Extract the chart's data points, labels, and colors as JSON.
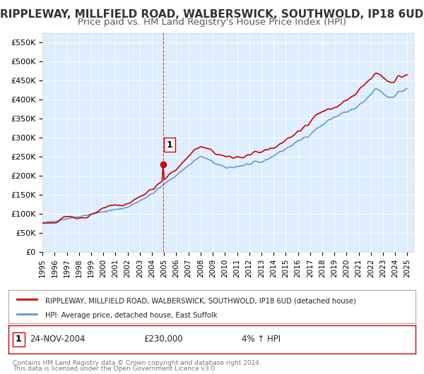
{
  "title": "RIPPLEWAY, MILLFIELD ROAD, WALBERSWICK, SOUTHWOLD, IP18 6UD",
  "subtitle": "Price paid vs. HM Land Registry's House Price Index (HPI)",
  "xlabel": "",
  "ylabel": "",
  "ylim": [
    0,
    575000
  ],
  "yticks": [
    0,
    50000,
    100000,
    150000,
    200000,
    250000,
    300000,
    350000,
    400000,
    450000,
    500000,
    550000
  ],
  "ytick_labels": [
    "£0",
    "£50K",
    "£100K",
    "£150K",
    "£200K",
    "£250K",
    "£300K",
    "£350K",
    "£400K",
    "£450K",
    "£500K",
    "£550K"
  ],
  "xtick_years": [
    1995,
    1996,
    1997,
    1998,
    1999,
    2000,
    2001,
    2002,
    2003,
    2004,
    2005,
    2006,
    2007,
    2008,
    2009,
    2010,
    2011,
    2012,
    2013,
    2014,
    2015,
    2016,
    2017,
    2018,
    2019,
    2020,
    2021,
    2022,
    2023,
    2024,
    2025
  ],
  "property_color": "#cc0000",
  "hpi_color": "#6699cc",
  "background_color": "#ddeeff",
  "sale_x": 2004.9,
  "sale_y": 230000,
  "sale_label": "1",
  "vline_x": 2004.9,
  "annotation_date": "24-NOV-2004",
  "annotation_price": "£230,000",
  "annotation_hpi": "4% ↑ HPI",
  "legend_label1": "RIPPLEWAY, MILLFIELD ROAD, WALBERSWICK, SOUTHWOLD, IP18 6UD (detached house)",
  "legend_label2": "HPI: Average price, detached house, East Suffolk",
  "footer1": "Contains HM Land Registry data © Crown copyright and database right 2024.",
  "footer2": "This data is licensed under the Open Government Licence v3.0.",
  "title_fontsize": 11,
  "subtitle_fontsize": 9.5
}
